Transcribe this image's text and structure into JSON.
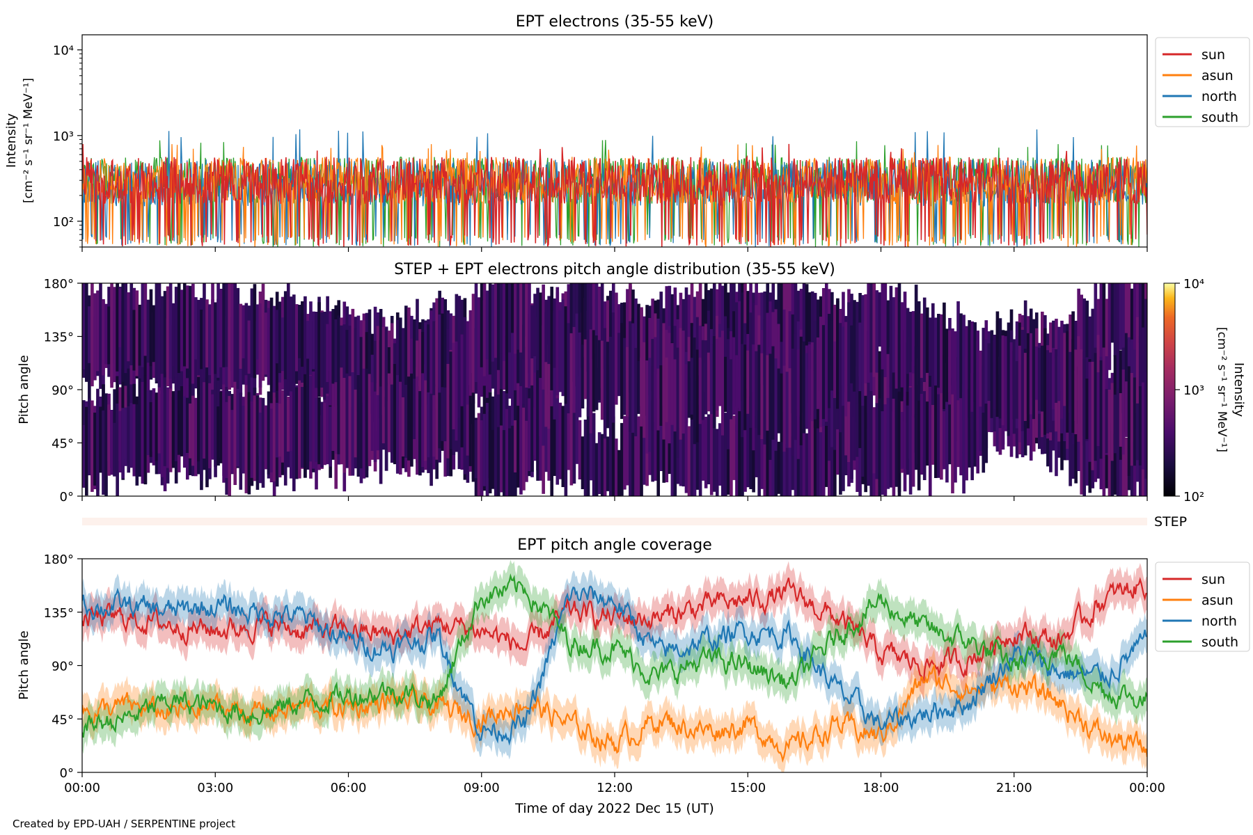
{
  "footer": "Created by EPD-UAH / SERPENTINE project",
  "colors": {
    "sun": "#d62728",
    "asun": "#ff7f0e",
    "north": "#1f77b4",
    "south": "#2ca02c",
    "step_bar": "#fdf1ec"
  },
  "chart_data": [
    {
      "type": "line",
      "title": "EPT electrons (35-55 keV)",
      "ylabel_line1": "Intensity",
      "ylabel_line2": "[cm⁻² s⁻¹ sr⁻¹ MeV⁻¹]",
      "yscale": "log",
      "ylim": [
        50,
        15000
      ],
      "yticks": [
        {
          "value": 100,
          "label": "10²"
        },
        {
          "value": 1000,
          "label": "10³"
        },
        {
          "value": 10000,
          "label": "10⁴"
        }
      ],
      "xlim": [
        "2022-12-15 00:00",
        "2022-12-16 00:00"
      ],
      "legend_position": "outside-top-right",
      "series": [
        {
          "name": "sun",
          "typical": 300,
          "range": [
            50,
            800
          ]
        },
        {
          "name": "asun",
          "typical": 300,
          "range": [
            50,
            800
          ]
        },
        {
          "name": "north",
          "typical": 280,
          "range": [
            50,
            1200
          ]
        },
        {
          "name": "south",
          "typical": 300,
          "range": [
            50,
            900
          ]
        }
      ]
    },
    {
      "type": "heatmap",
      "title": "STEP + EPT electrons pitch angle distribution (35-55 keV)",
      "ylabel": "Pitch angle",
      "ylim": [
        0,
        180
      ],
      "yticks": [
        "0°",
        "45°",
        "90°",
        "135°",
        "180°"
      ],
      "colorbar": {
        "label_line1": "Intensity",
        "label_line2": "[cm⁻² s⁻¹ sr⁻¹ MeV⁻¹]",
        "scale": "log",
        "range": [
          100,
          10000
        ],
        "colormap": "inferno",
        "ticks": [
          {
            "value": 100,
            "label": "10²"
          },
          {
            "value": 1000,
            "label": "10³"
          },
          {
            "value": 10000,
            "label": "10⁴"
          }
        ]
      },
      "step_label": "STEP"
    },
    {
      "type": "line",
      "title": "EPT pitch angle coverage",
      "ylabel": "Pitch angle",
      "ylim": [
        0,
        180
      ],
      "yticks": [
        "0°",
        "45°",
        "90°",
        "135°",
        "180°"
      ],
      "xlabel": "Time of day 2022 Dec 15 (UT)",
      "xticks": [
        "00:00",
        "03:00",
        "06:00",
        "09:00",
        "12:00",
        "15:00",
        "18:00",
        "21:00",
        "00:00"
      ],
      "legend_position": "outside-top-right",
      "x_hours": [
        0,
        1,
        2,
        3,
        4,
        5,
        6,
        7,
        8,
        9,
        10,
        11,
        12,
        13,
        14,
        15,
        16,
        17,
        18,
        19,
        20,
        21,
        22,
        23,
        24
      ],
      "series": [
        {
          "name": "sun",
          "values": [
            130,
            130,
            125,
            120,
            125,
            120,
            120,
            115,
            125,
            120,
            105,
            135,
            130,
            130,
            140,
            145,
            150,
            130,
            100,
            90,
            95,
            120,
            110,
            145,
            160
          ]
        },
        {
          "name": "asun",
          "values": [
            50,
            55,
            50,
            55,
            50,
            55,
            55,
            60,
            55,
            45,
            60,
            40,
            25,
            45,
            35,
            40,
            20,
            40,
            30,
            80,
            70,
            75,
            60,
            30,
            20
          ]
        },
        {
          "name": "north",
          "values": [
            140,
            140,
            135,
            140,
            135,
            130,
            110,
            105,
            115,
            35,
            40,
            150,
            145,
            100,
            110,
            120,
            115,
            70,
            40,
            50,
            60,
            100,
            85,
            80,
            110
          ]
        },
        {
          "name": "south",
          "values": [
            40,
            45,
            60,
            55,
            50,
            60,
            65,
            70,
            60,
            150,
            155,
            110,
            105,
            80,
            95,
            90,
            75,
            115,
            145,
            120,
            110,
            90,
            105,
            70,
            60
          ]
        }
      ]
    }
  ]
}
